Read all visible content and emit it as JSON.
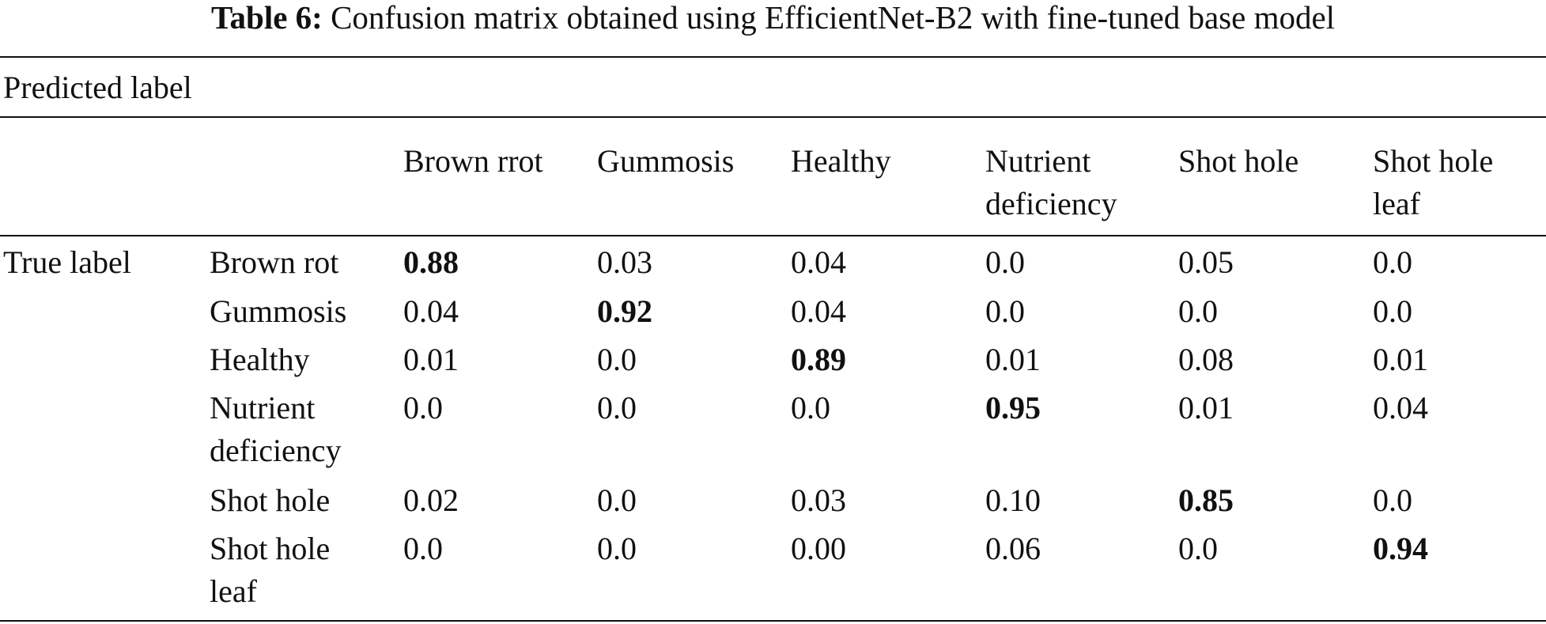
{
  "caption": {
    "label": "Table 6:",
    "text": "Confusion matrix obtained using EfficientNet-B2 with fine-tuned base model"
  },
  "predicted_label": "Predicted label",
  "true_label": "True label",
  "columns": [
    [
      "Brown rrot"
    ],
    [
      "Gummosis"
    ],
    [
      "Healthy"
    ],
    [
      "Nutrient",
      "deficiency"
    ],
    [
      "Shot hole"
    ],
    [
      "Shot hole",
      "leaf"
    ]
  ],
  "rows": [
    {
      "label": [
        "Brown rot"
      ],
      "values": [
        "0.88",
        "0.03",
        "0.04",
        "0.0",
        "0.05",
        "0.0"
      ],
      "bold": 0
    },
    {
      "label": [
        "Gummosis"
      ],
      "values": [
        "0.04",
        "0.92",
        "0.04",
        "0.0",
        "0.0",
        "0.0"
      ],
      "bold": 1
    },
    {
      "label": [
        "Healthy"
      ],
      "values": [
        "0.01",
        "0.0",
        "0.89",
        "0.01",
        "0.08",
        "0.01"
      ],
      "bold": 2
    },
    {
      "label": [
        "Nutrient",
        "deficiency"
      ],
      "values": [
        "0.0",
        "0.0",
        "0.0",
        "0.95",
        "0.01",
        "0.04"
      ],
      "bold": 3
    },
    {
      "label": [
        "Shot hole"
      ],
      "values": [
        "0.02",
        "0.0",
        "0.03",
        "0.10",
        "0.85",
        "0.0"
      ],
      "bold": 4
    },
    {
      "label": [
        "Shot hole",
        "leaf"
      ],
      "values": [
        "0.0",
        "0.0",
        "0.00",
        "0.06",
        "0.0",
        "0.94"
      ],
      "bold": 5
    }
  ]
}
